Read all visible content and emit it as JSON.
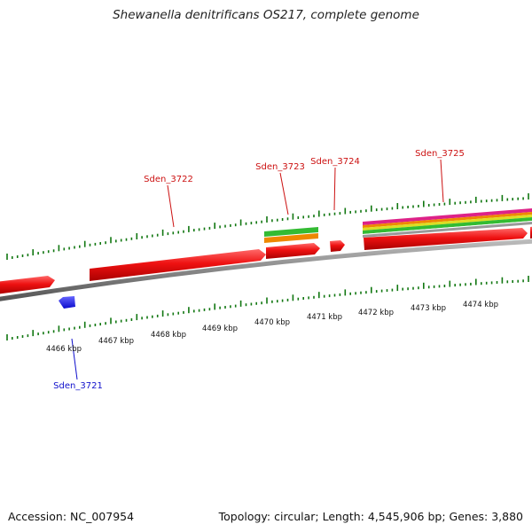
{
  "title": "Shewanella denitrificans OS217, complete genome",
  "footer": {
    "accession": "Accession: NC_007954",
    "summary": "Topology: circular; Length: 4,545,906 bp; Genes: 3,880"
  },
  "scale_labels": [
    "4466 kbp",
    "4467 kbp",
    "4468 kbp",
    "4469 kbp",
    "4470 kbp",
    "4471 kbp",
    "4472 kbp",
    "4473 kbp",
    "4474 kbp"
  ],
  "genes": [
    {
      "label": "Sden_3721",
      "color": "#1010cc"
    },
    {
      "label": "Sden_3722",
      "color": "#cc1111"
    },
    {
      "label": "Sden_3723",
      "color": "#cc1111"
    },
    {
      "label": "Sden_3724",
      "color": "#cc1111"
    },
    {
      "label": "Sden_3725",
      "color": "#cc1111"
    }
  ],
  "colors": {
    "forward_gene": "#ee1111",
    "reverse_gene": "#1a1aee",
    "backbone": "#888888",
    "tick": "#117711",
    "band_green": "#33bb33",
    "band_orange": "#ee8800",
    "band_magenta": "#dd2288",
    "band_yellow": "#dddd22"
  }
}
